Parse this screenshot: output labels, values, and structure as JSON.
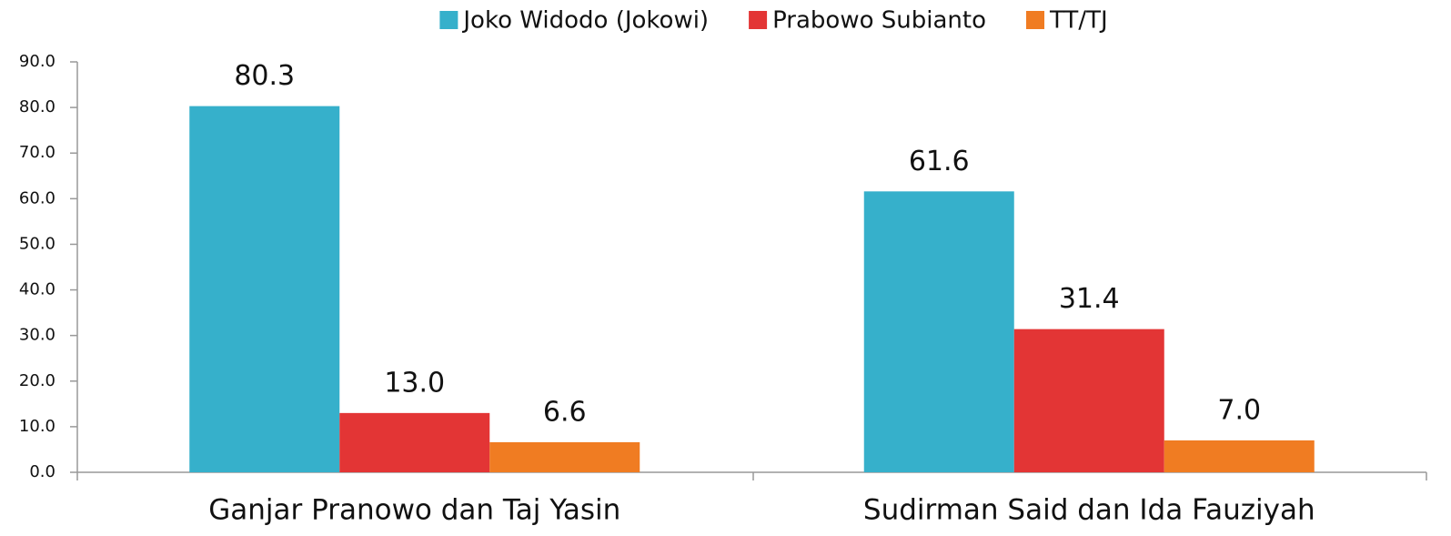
{
  "chart_data": {
    "type": "bar",
    "categories": [
      "Ganjar Pranowo dan Taj Yasin",
      "Sudirman Said dan Ida Fauziyah"
    ],
    "series": [
      {
        "name": "Joko Widodo (Jokowi)",
        "color": "#36b0cb",
        "values": [
          80.3,
          61.6
        ],
        "value_labels": [
          "80.3",
          "61.6"
        ]
      },
      {
        "name": "Prabowo Subianto",
        "color": "#e33535",
        "values": [
          13.0,
          31.4
        ],
        "value_labels": [
          "13.0",
          "31.4"
        ]
      },
      {
        "name": "TT/TJ",
        "color": "#f07c22",
        "values": [
          6.6,
          7.0
        ],
        "value_labels": [
          "6.6",
          "7.0"
        ]
      }
    ],
    "ylim": [
      0,
      90
    ],
    "yticks": [
      {
        "value": 0,
        "label": "0.0"
      },
      {
        "value": 10,
        "label": "10.0"
      },
      {
        "value": 20,
        "label": "20.0"
      },
      {
        "value": 30,
        "label": "30.0"
      },
      {
        "value": 40,
        "label": "40.0"
      },
      {
        "value": 50,
        "label": "50.0"
      },
      {
        "value": 60,
        "label": "60.0"
      },
      {
        "value": 70,
        "label": "70.0"
      },
      {
        "value": 80,
        "label": "80.0"
      },
      {
        "value": 90,
        "label": "90.0"
      }
    ],
    "grid": false,
    "legend": "top"
  }
}
